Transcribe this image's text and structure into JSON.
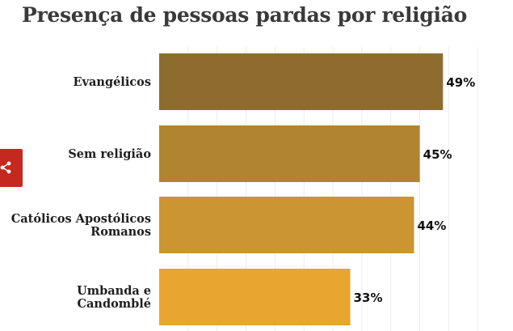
{
  "chart_data": {
    "type": "bar",
    "orientation": "horizontal",
    "title": "Presença de pessoas pardas por religião",
    "categories": [
      [
        "Evangélicos"
      ],
      [
        "Sem religião"
      ],
      [
        "Católicos Apostólicos",
        "Romanos"
      ],
      [
        "Umbanda e",
        "Candomblé"
      ]
    ],
    "values": [
      49,
      45,
      44,
      33
    ],
    "value_labels": [
      "49%",
      "45%",
      "44%",
      "33%"
    ],
    "colors": [
      "#8e6c30",
      "#b1852f",
      "#cb9531",
      "#e8a52f"
    ],
    "xlim": [
      0,
      50
    ],
    "grid": true,
    "xlabel": "",
    "ylabel": ""
  },
  "share": {
    "icon": "share-icon",
    "color": "#c4281f"
  }
}
